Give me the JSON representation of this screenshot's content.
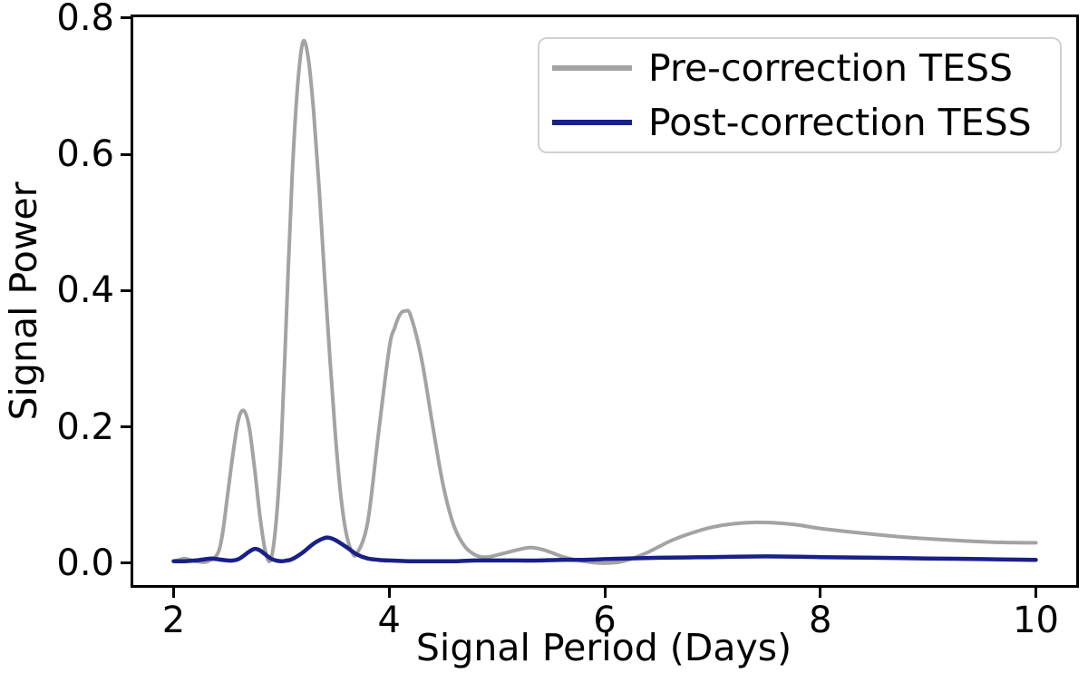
{
  "figure": {
    "background": "#ffffff"
  },
  "axes": {
    "xlabel": "Signal Period (Days)",
    "ylabel": "Signal Power",
    "xtick_labels": [
      "2",
      "4",
      "6",
      "8",
      "10"
    ],
    "ytick_labels": [
      "0.0",
      "0.2",
      "0.4",
      "0.6",
      "0.8"
    ]
  },
  "legend": {
    "entries": [
      {
        "label": "Pre-correction TESS",
        "color": "#a3a3a3"
      },
      {
        "label": "Post-correction TESS",
        "color": "#192087"
      }
    ]
  },
  "chart_data": {
    "type": "line",
    "title": "",
    "xlabel": "Signal Period (Days)",
    "ylabel": "Signal Power",
    "xlim": [
      1.6,
      10.4
    ],
    "ylim": [
      -0.036,
      0.805
    ],
    "xticks": [
      2,
      4,
      6,
      8,
      10
    ],
    "yticks": [
      0.0,
      0.2,
      0.4,
      0.6,
      0.8
    ],
    "grid": false,
    "legend_position": "upper right",
    "series": [
      {
        "name": "Pre-correction TESS",
        "color": "#a3a3a3",
        "line_width": 4,
        "x": [
          2.0,
          2.05,
          2.1,
          2.15,
          2.2,
          2.3,
          2.4,
          2.45,
          2.5,
          2.55,
          2.6,
          2.65,
          2.7,
          2.75,
          2.8,
          2.85,
          2.9,
          2.95,
          3.0,
          3.05,
          3.1,
          3.15,
          3.2,
          3.25,
          3.3,
          3.35,
          3.4,
          3.45,
          3.5,
          3.55,
          3.6,
          3.65,
          3.7,
          3.8,
          3.9,
          4.0,
          4.05,
          4.1,
          4.15,
          4.2,
          4.3,
          4.4,
          4.5,
          4.6,
          4.7,
          4.8,
          4.9,
          5.0,
          5.1,
          5.2,
          5.3,
          5.4,
          5.5,
          5.6,
          5.7,
          5.8,
          5.9,
          6.0,
          6.1,
          6.2,
          6.4,
          6.6,
          6.8,
          7.0,
          7.2,
          7.4,
          7.6,
          7.8,
          8.0,
          8.4,
          8.8,
          9.2,
          9.6,
          10.0
        ],
        "y": [
          0.003,
          0.005,
          0.007,
          0.005,
          0.003,
          0.002,
          0.012,
          0.04,
          0.1,
          0.16,
          0.21,
          0.224,
          0.2,
          0.14,
          0.07,
          0.018,
          0.005,
          0.06,
          0.18,
          0.38,
          0.57,
          0.7,
          0.765,
          0.74,
          0.66,
          0.55,
          0.42,
          0.3,
          0.19,
          0.1,
          0.045,
          0.018,
          0.014,
          0.06,
          0.19,
          0.315,
          0.345,
          0.365,
          0.37,
          0.363,
          0.3,
          0.205,
          0.115,
          0.055,
          0.025,
          0.012,
          0.009,
          0.012,
          0.016,
          0.02,
          0.023,
          0.021,
          0.016,
          0.01,
          0.006,
          0.003,
          0.001,
          0.0,
          0.001,
          0.004,
          0.016,
          0.032,
          0.044,
          0.053,
          0.058,
          0.06,
          0.059,
          0.056,
          0.051,
          0.044,
          0.038,
          0.034,
          0.031,
          0.03
        ]
      },
      {
        "name": "Post-correction TESS",
        "color": "#192087",
        "line_width": 4.5,
        "x": [
          2.0,
          2.1,
          2.2,
          2.3,
          2.35,
          2.4,
          2.5,
          2.55,
          2.6,
          2.65,
          2.7,
          2.75,
          2.8,
          2.85,
          2.9,
          2.95,
          3.0,
          3.05,
          3.1,
          3.2,
          3.3,
          3.4,
          3.45,
          3.5,
          3.6,
          3.7,
          3.8,
          3.9,
          4.0,
          4.2,
          4.4,
          4.6,
          4.8,
          5.0,
          5.2,
          5.4,
          5.6,
          5.8,
          6.0,
          6.2,
          6.5,
          7.0,
          7.5,
          8.0,
          8.5,
          9.0,
          9.5,
          10.0
        ],
        "y": [
          0.003,
          0.003,
          0.004,
          0.006,
          0.007,
          0.006,
          0.004,
          0.004,
          0.006,
          0.011,
          0.017,
          0.021,
          0.019,
          0.013,
          0.007,
          0.004,
          0.003,
          0.004,
          0.006,
          0.016,
          0.029,
          0.037,
          0.037,
          0.034,
          0.024,
          0.013,
          0.007,
          0.005,
          0.004,
          0.003,
          0.003,
          0.003,
          0.004,
          0.004,
          0.004,
          0.004,
          0.005,
          0.005,
          0.006,
          0.007,
          0.008,
          0.009,
          0.01,
          0.009,
          0.008,
          0.007,
          0.006,
          0.005
        ]
      }
    ]
  }
}
